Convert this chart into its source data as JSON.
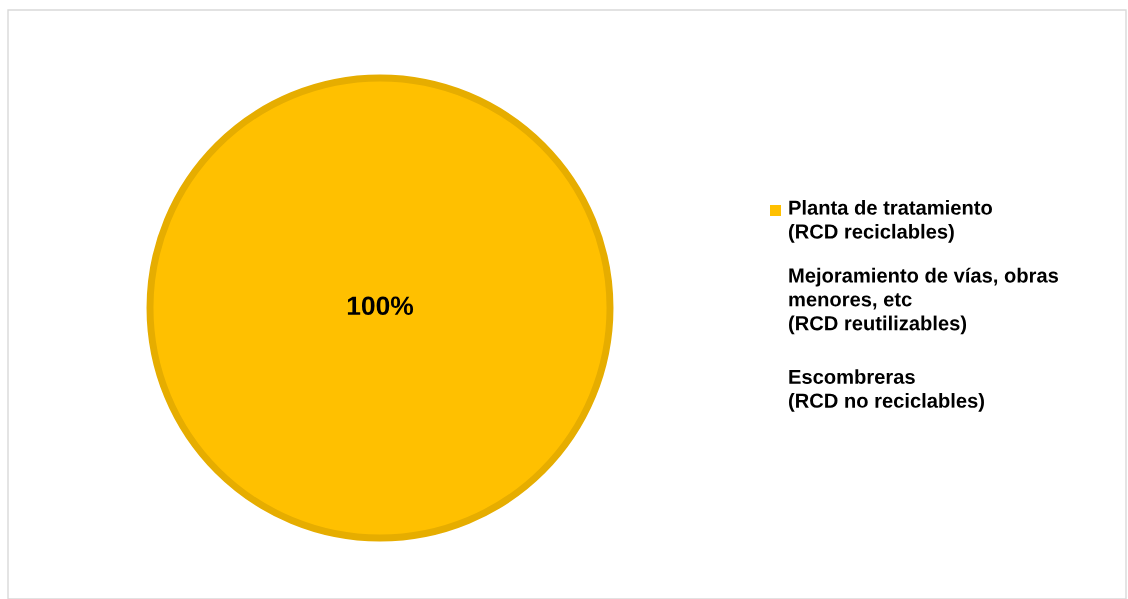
{
  "chart_data": {
    "type": "pie",
    "categories": [
      "Planta de tratamiento (RCD reciclables)",
      "Mejoramiento de vías, obras menores, etc (RCD reutilizables)",
      "Escombreras (RCD no reciclables)"
    ],
    "values": [
      100,
      0,
      0
    ],
    "colors": [
      "#ffc000",
      "#ffffff",
      "#ffffff"
    ],
    "value_labels": [
      "100%",
      null,
      null
    ],
    "legend": "right"
  }
}
